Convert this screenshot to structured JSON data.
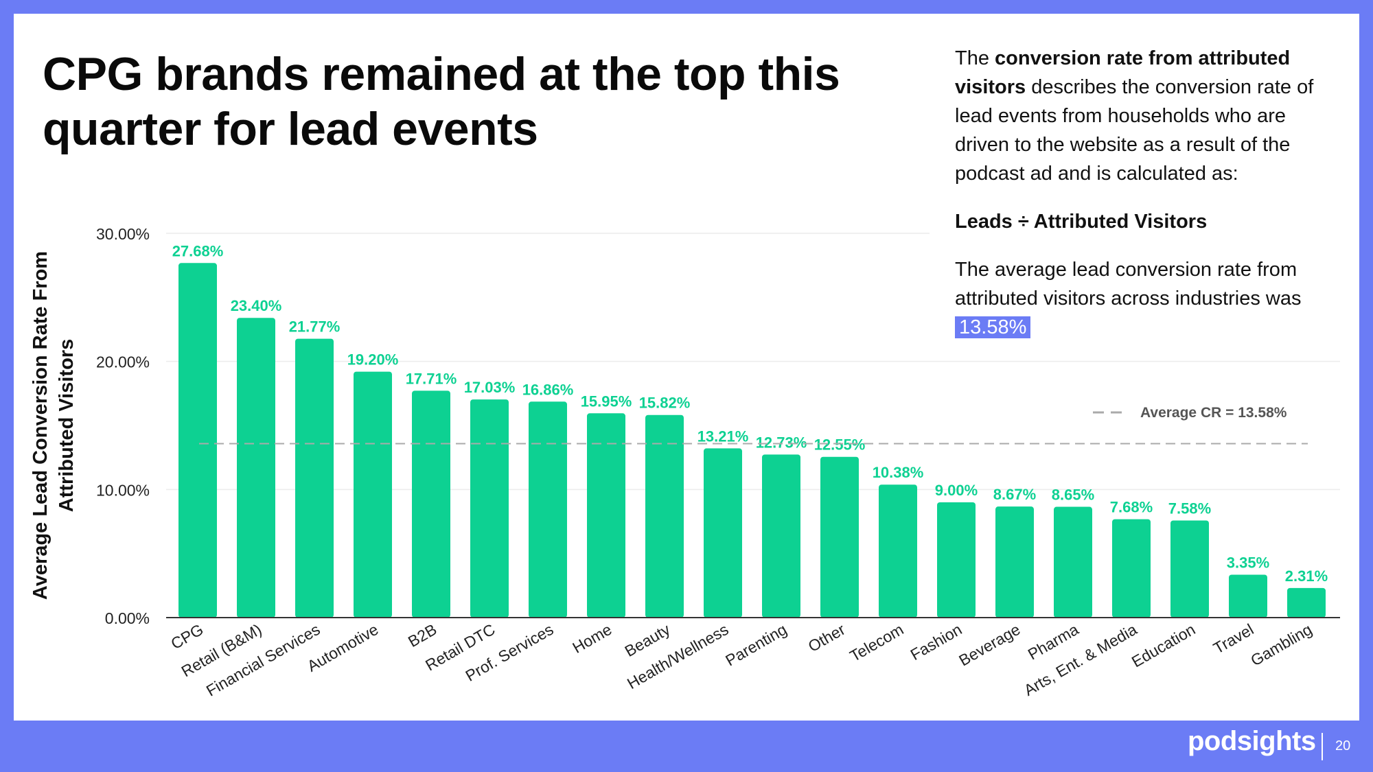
{
  "slide": {
    "title": "CPG brands remained at the top this quarter for lead events",
    "side": {
      "p1_prefix": "The ",
      "p1_bold": "conversion rate from attributed visitors",
      "p1_suffix": " describes the conversion rate of lead events from households who are driven to the website as a result of the podcast ad and is calculated as:",
      "formula": "Leads ÷ Attributed Visitors",
      "p2_prefix": "The average lead conversion rate from attributed visitors across industries was",
      "p2_highlight": "13.58%"
    },
    "footer": {
      "logo": "podsights",
      "page": "20"
    }
  },
  "colors": {
    "bar": "#0DD192",
    "frame": "#6B7CF5",
    "avg_line": "#AAAAAA"
  },
  "chart_data": {
    "type": "bar",
    "categories": [
      "CPG",
      "Retail (B&M)",
      "Financial Services",
      "Automotive",
      "B2B",
      "Retail DTC",
      "Prof. Services",
      "Home",
      "Beauty",
      "Health/Wellness",
      "Parenting",
      "Other",
      "Telecom",
      "Fashion",
      "Beverage",
      "Pharma",
      "Arts, Ent. & Media",
      "Education",
      "Travel",
      "Gambling"
    ],
    "values": [
      27.68,
      23.4,
      21.77,
      19.2,
      17.71,
      17.03,
      16.86,
      15.95,
      15.82,
      13.21,
      12.73,
      12.55,
      10.38,
      9.0,
      8.67,
      8.65,
      7.68,
      7.58,
      3.35,
      2.31
    ],
    "data_labels": [
      "27.68%",
      "23.40%",
      "21.77%",
      "19.20%",
      "17.71%",
      "17.03%",
      "16.86%",
      "15.95%",
      "15.82%",
      "13.21%",
      "12.73%",
      "12.55%",
      "10.38%",
      "9.00%",
      "8.67%",
      "8.65%",
      "7.68%",
      "7.58%",
      "3.35%",
      "2.31%"
    ],
    "ylabel": "Average Lead Conversion Rate From Attributed Visitors",
    "ylim": [
      0,
      30
    ],
    "yticks": [
      0,
      10,
      20,
      30
    ],
    "ytick_labels": [
      "0.00%",
      "10.00%",
      "20.00%",
      "30.00%"
    ],
    "grid": true,
    "average_line": {
      "value": 13.58,
      "label": "Average CR = 13.58%"
    },
    "legend": "top-right"
  }
}
